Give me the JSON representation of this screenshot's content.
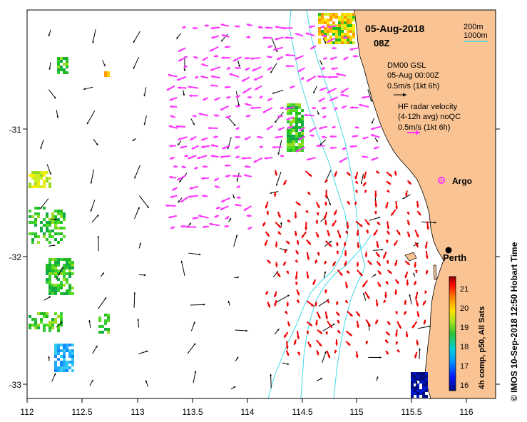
{
  "map": {
    "date": "05-Aug-2018",
    "hour": "08Z",
    "legend_model_title": "DM00 GSL",
    "legend_model_time": "05-Aug 00:00Z",
    "legend_model_scale": "0.5m/s (1kt 6h)",
    "legend_hf_title": "HF radar velocity",
    "legend_hf_sub": "(4-12h avg) noQC",
    "legend_hf_scale": "0.5m/s (1kt 6h)",
    "isobath_1": "200m",
    "isobath_2": "1000m",
    "isobath_color": "#3fd9e6",
    "argo_label": "Argo",
    "city_label": "Perth",
    "right_caption": "© IMOS 10-Sep-2018 12:50 Hobart Time",
    "colorbar_label": "4h comp, p50, All Sats",
    "colorbar_ticks": [
      "16",
      "17",
      "18",
      "19",
      "20",
      "21"
    ],
    "x_ticks": [
      "112",
      "112.5",
      "113",
      "113.5",
      "114",
      "114.5",
      "115",
      "115.5",
      "116"
    ],
    "y_ticks": [
      "-31",
      "-32",
      "-33"
    ],
    "land_color": "#f9c393",
    "hf_arrow_color": "#ff33ff",
    "model_arrow_color": "#000000",
    "red_arrow_color": "#ee0000"
  }
}
